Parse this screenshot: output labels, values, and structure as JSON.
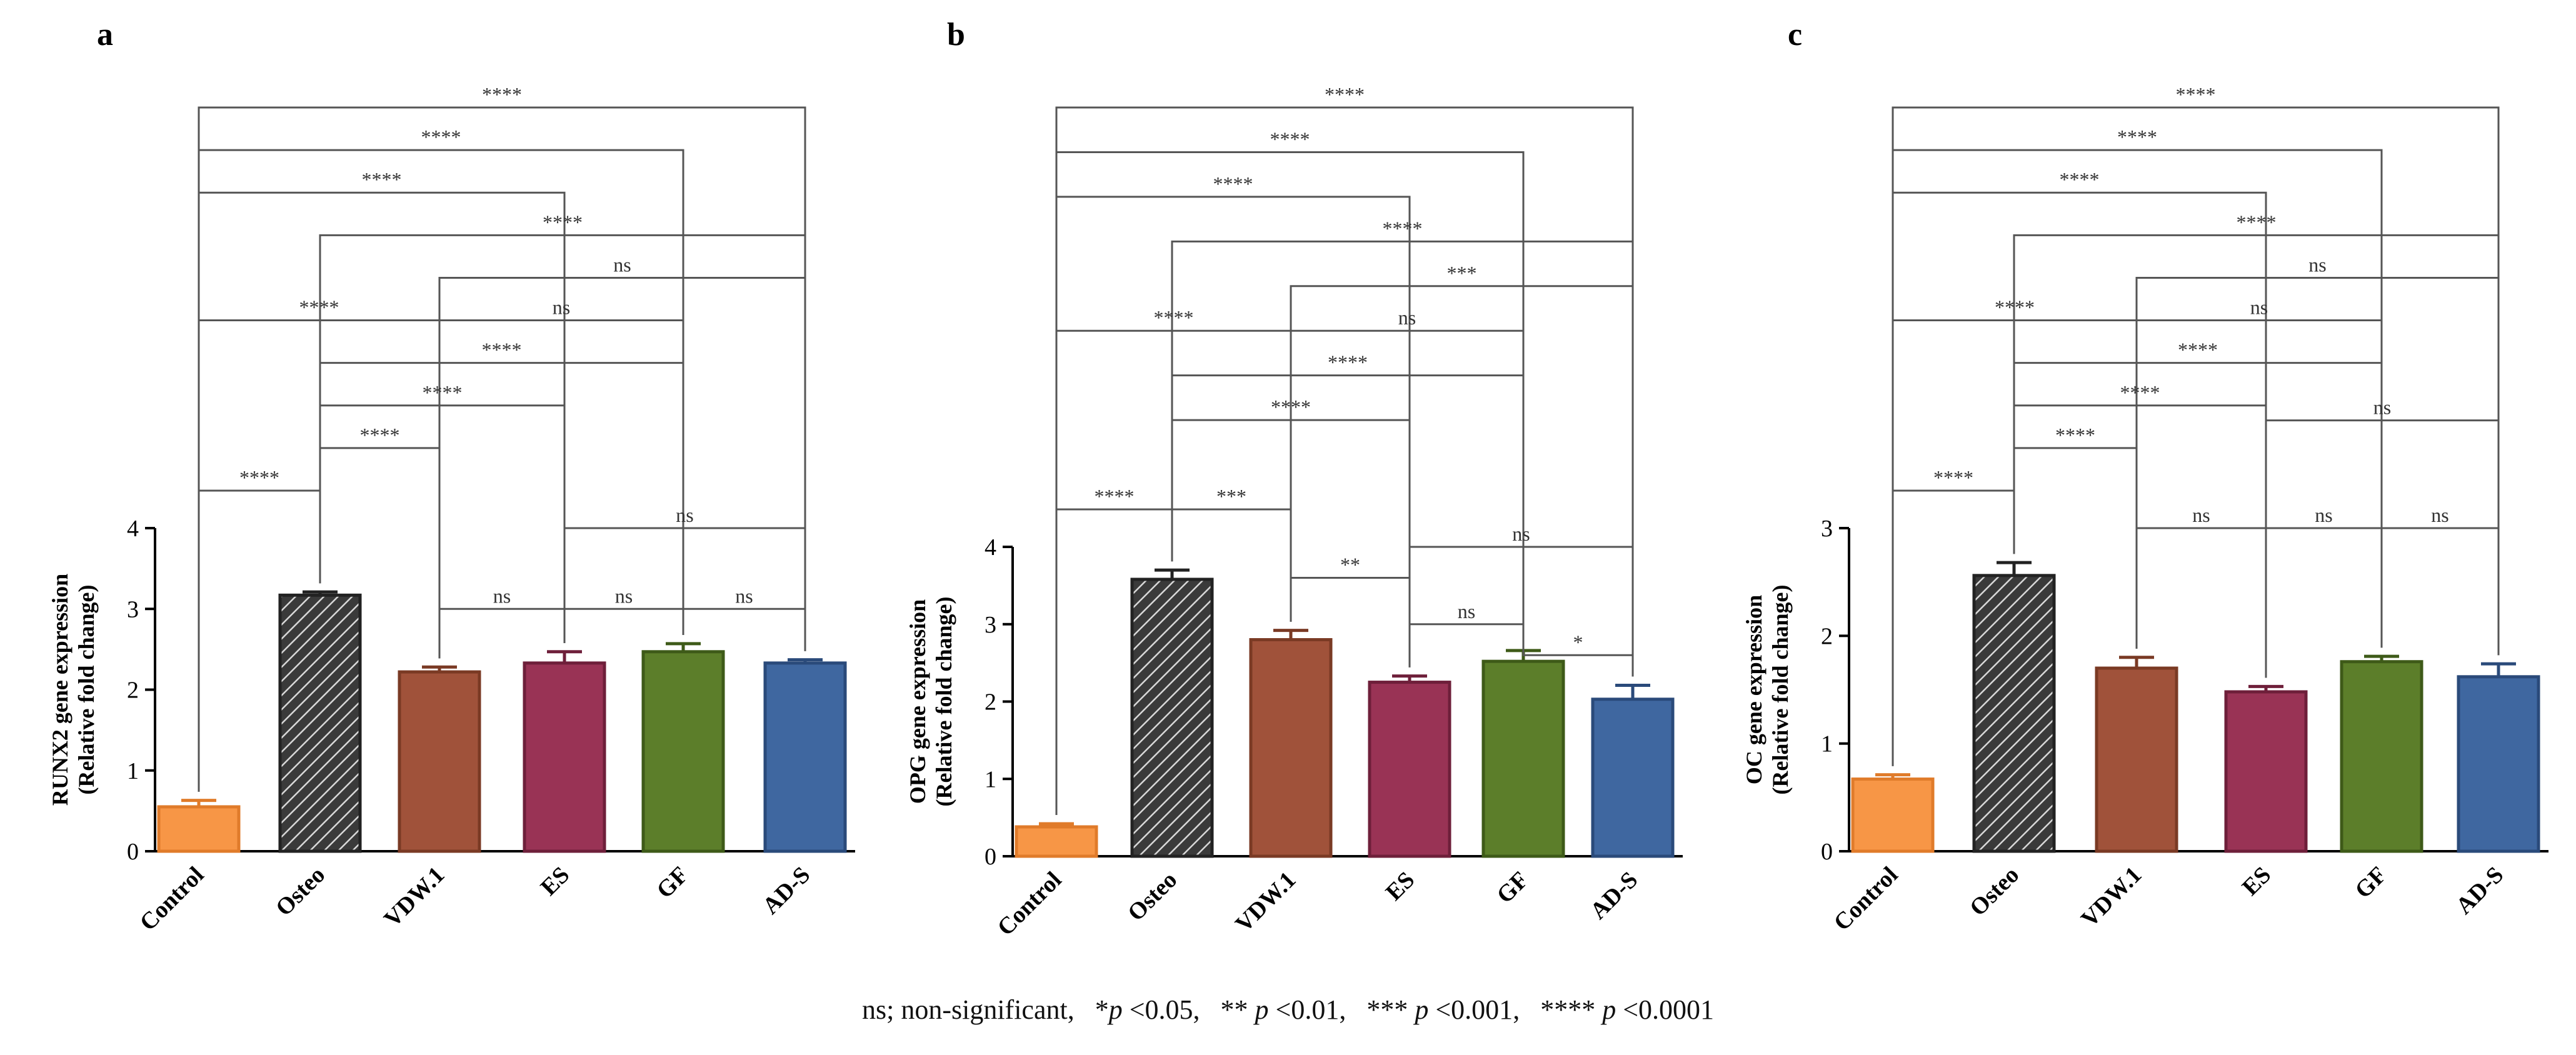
{
  "footnote": {
    "lead": "ns; non-significant,",
    "items": [
      {
        "stars": "*",
        "p": "p",
        "cmp": "<0.05"
      },
      {
        "stars": "**",
        "p": "p",
        "cmp": "<0.01"
      },
      {
        "stars": "***",
        "p": "p",
        "cmp": "<0.001"
      },
      {
        "stars": "****",
        "p": "p",
        "cmp": "<0.0001"
      }
    ]
  },
  "colors": {
    "Control": "#F79646",
    "Osteo": "#3A3A3A",
    "VDW.1": "#A0523A",
    "ES": "#993355",
    "GF": "#5C7E2A",
    "AD-S": "#3F67A0",
    "Control_edge": "#E07B2A",
    "VDW.1_edge": "#7A3A24",
    "ES_edge": "#6E1F3A",
    "GF_edge": "#3E5A18",
    "AD-S_edge": "#2A4A7A"
  },
  "chart_data": [
    {
      "panel": "a",
      "type": "bar",
      "title": "",
      "ylabel": "RUNX2 gene expression",
      "ylabel2": "(Relative fold change)",
      "xlabel": "",
      "categories": [
        "Control",
        "Osteo",
        "VDW.1",
        "ES",
        "GF",
        "AD-S"
      ],
      "values": [
        0.55,
        3.17,
        2.22,
        2.33,
        2.47,
        2.33
      ],
      "errors": [
        0.08,
        0.04,
        0.06,
        0.14,
        0.1,
        0.04
      ],
      "ylim": [
        0,
        4
      ],
      "yticks": [
        0,
        1,
        2,
        3,
        4
      ],
      "osteo_hatched": true,
      "comparisons": [
        {
          "from": 0,
          "to": 5,
          "label": "****",
          "level": 14
        },
        {
          "from": 0,
          "to": 4,
          "label": "****",
          "level": 13
        },
        {
          "from": 0,
          "to": 3,
          "label": "****",
          "level": 12
        },
        {
          "from": 1,
          "to": 5,
          "label": "****",
          "level": 11
        },
        {
          "from": 2,
          "to": 5,
          "label": "ns",
          "level": 10
        },
        {
          "from": 0,
          "to": 2,
          "label": "****",
          "level": 9
        },
        {
          "from": 2,
          "to": 4,
          "label": "ns",
          "level": 9
        },
        {
          "from": 1,
          "to": 4,
          "label": "****",
          "level": 8
        },
        {
          "from": 1,
          "to": 3,
          "label": "****",
          "level": 7
        },
        {
          "from": 0,
          "to": 1,
          "label": "****",
          "level": 5
        },
        {
          "from": 1,
          "to": 2,
          "label": "****",
          "level": 6
        },
        {
          "from": 3,
          "to": 5,
          "label": "ns",
          "level": 4
        },
        {
          "from": 2,
          "to": 3,
          "label": "ns",
          "level": 3
        },
        {
          "from": 3,
          "to": 4,
          "label": "ns",
          "level": 3
        },
        {
          "from": 4,
          "to": 5,
          "label": "ns",
          "level": 3
        }
      ]
    },
    {
      "panel": "b",
      "type": "bar",
      "title": "",
      "ylabel": "OPG gene expression",
      "ylabel2": "(Relative fold change)",
      "xlabel": "",
      "categories": [
        "Control",
        "Osteo",
        "VDW.1",
        "ES",
        "GF",
        "AD-S"
      ],
      "values": [
        0.38,
        3.58,
        2.8,
        2.25,
        2.52,
        2.03
      ],
      "errors": [
        0.04,
        0.12,
        0.12,
        0.08,
        0.14,
        0.18
      ],
      "ylim": [
        0,
        4
      ],
      "yticks": [
        0,
        1,
        2,
        3,
        4
      ],
      "osteo_hatched": true,
      "comparisons": [
        {
          "from": 0,
          "to": 5,
          "label": "****",
          "level": 14
        },
        {
          "from": 0,
          "to": 4,
          "label": "****",
          "level": 13
        },
        {
          "from": 0,
          "to": 3,
          "label": "****",
          "level": 12
        },
        {
          "from": 1,
          "to": 5,
          "label": "****",
          "level": 11
        },
        {
          "from": 2,
          "to": 5,
          "label": "***",
          "level": 10
        },
        {
          "from": 0,
          "to": 2,
          "label": "****",
          "level": 9
        },
        {
          "from": 2,
          "to": 4,
          "label": "ns",
          "level": 9
        },
        {
          "from": 1,
          "to": 4,
          "label": "****",
          "level": 8
        },
        {
          "from": 1,
          "to": 3,
          "label": "****",
          "level": 7
        },
        {
          "from": 0,
          "to": 1,
          "label": "****",
          "level": 5
        },
        {
          "from": 1,
          "to": 2,
          "label": "***",
          "level": 5
        },
        {
          "from": 3,
          "to": 5,
          "label": "ns",
          "level": 4
        },
        {
          "from": 2,
          "to": 3,
          "label": "**",
          "level": 3.6
        },
        {
          "from": 3,
          "to": 4,
          "label": "ns",
          "level": 3
        },
        {
          "from": 4,
          "to": 5,
          "label": "*",
          "level": 2.6
        }
      ]
    },
    {
      "panel": "c",
      "type": "bar",
      "title": "",
      "ylabel": "OC gene expression",
      "ylabel2": "(Relative fold change)",
      "xlabel": "",
      "categories": [
        "Control",
        "Osteo",
        "VDW.1",
        "ES",
        "GF",
        "AD-S"
      ],
      "values": [
        0.67,
        2.56,
        1.7,
        1.48,
        1.76,
        1.62
      ],
      "errors": [
        0.04,
        0.12,
        0.1,
        0.05,
        0.05,
        0.12
      ],
      "ylim": [
        0,
        3
      ],
      "yticks": [
        0,
        1,
        2,
        3
      ],
      "osteo_hatched": true,
      "comparisons": [
        {
          "from": 0,
          "to": 5,
          "label": "****",
          "level": 14
        },
        {
          "from": 0,
          "to": 4,
          "label": "****",
          "level": 13
        },
        {
          "from": 0,
          "to": 3,
          "label": "****",
          "level": 12
        },
        {
          "from": 1,
          "to": 5,
          "label": "****",
          "level": 11
        },
        {
          "from": 2,
          "to": 5,
          "label": "ns",
          "level": 10
        },
        {
          "from": 0,
          "to": 2,
          "label": "****",
          "level": 9
        },
        {
          "from": 2,
          "to": 4,
          "label": "ns",
          "level": 9
        },
        {
          "from": 1,
          "to": 4,
          "label": "****",
          "level": 8
        },
        {
          "from": 1,
          "to": 3,
          "label": "****",
          "level": 7
        },
        {
          "from": 0,
          "to": 1,
          "label": "****",
          "level": 5
        },
        {
          "from": 1,
          "to": 2,
          "label": "****",
          "level": 6
        },
        {
          "from": 3,
          "to": 5,
          "label": "ns",
          "level": 4
        },
        {
          "from": 2,
          "to": 3,
          "label": "ns",
          "level": 3
        },
        {
          "from": 3,
          "to": 4,
          "label": "ns",
          "level": 3
        },
        {
          "from": 4,
          "to": 5,
          "label": "ns",
          "level": 3
        }
      ]
    }
  ]
}
